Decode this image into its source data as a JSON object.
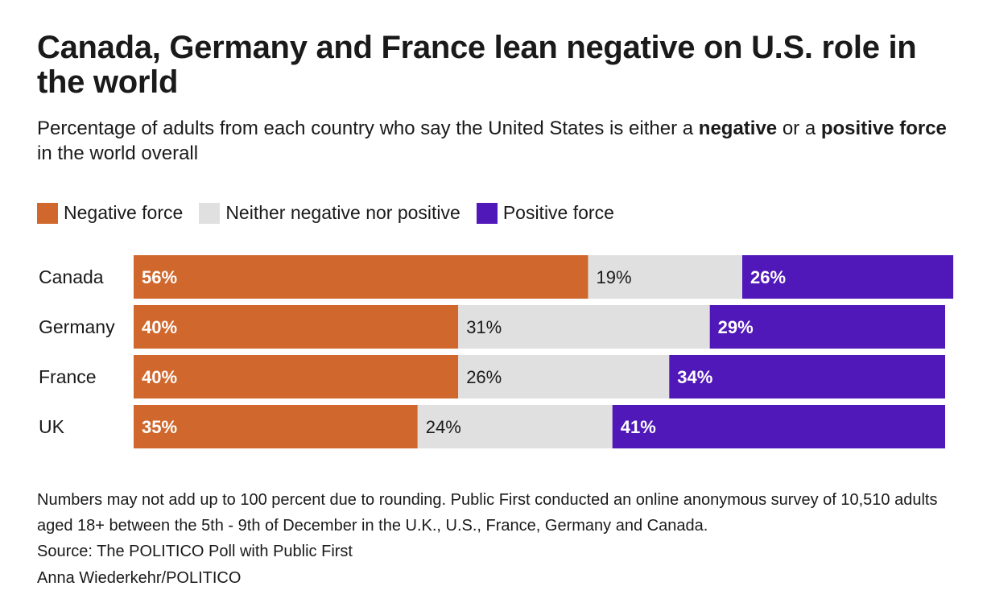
{
  "title": "Canada, Germany and France lean negative on U.S. role in the world",
  "subtitle": {
    "part1": "Percentage of adults from each country who say the United States is either a ",
    "bold1": "negative",
    "part2": " or a ",
    "bold2": "positive force",
    "part3": " in the world overall"
  },
  "legend": [
    {
      "label": "Negative force",
      "color": "#D0672C"
    },
    {
      "label": "Neither negative nor positive",
      "color": "#E0E0E0"
    },
    {
      "label": "Positive force",
      "color": "#5018B8"
    }
  ],
  "chart_data": {
    "type": "bar",
    "orientation": "horizontal",
    "stacked": true,
    "title": "Canada, Germany and France lean negative on U.S. role in the world",
    "xlabel": "",
    "ylabel": "",
    "xlim": [
      0,
      100
    ],
    "categories": [
      "Canada",
      "Germany",
      "France",
      "UK"
    ],
    "series": [
      {
        "name": "Negative force",
        "color": "#D0672C",
        "label_color": "#ffffff",
        "values": [
          56,
          40,
          40,
          35
        ]
      },
      {
        "name": "Neither negative nor positive",
        "color": "#E0E0E0",
        "label_color": "#1a1a1a",
        "values": [
          19,
          31,
          26,
          24
        ]
      },
      {
        "name": "Positive force",
        "color": "#5018B8",
        "label_color": "#ffffff",
        "values": [
          26,
          29,
          34,
          41
        ]
      }
    ],
    "value_suffix": "%",
    "grid": false,
    "legend_position": "top-left"
  },
  "notes": {
    "note": "Numbers may not add up to 100 percent due to rounding. Public First conducted an online anonymous survey of 10,510 adults aged 18+ between the 5th - 9th of December in the U.K., U.S., France, Germany and Canada.",
    "source": "Source: The POLITICO Poll with Public First",
    "credit": "Anna Wiederkehr/POLITICO"
  }
}
